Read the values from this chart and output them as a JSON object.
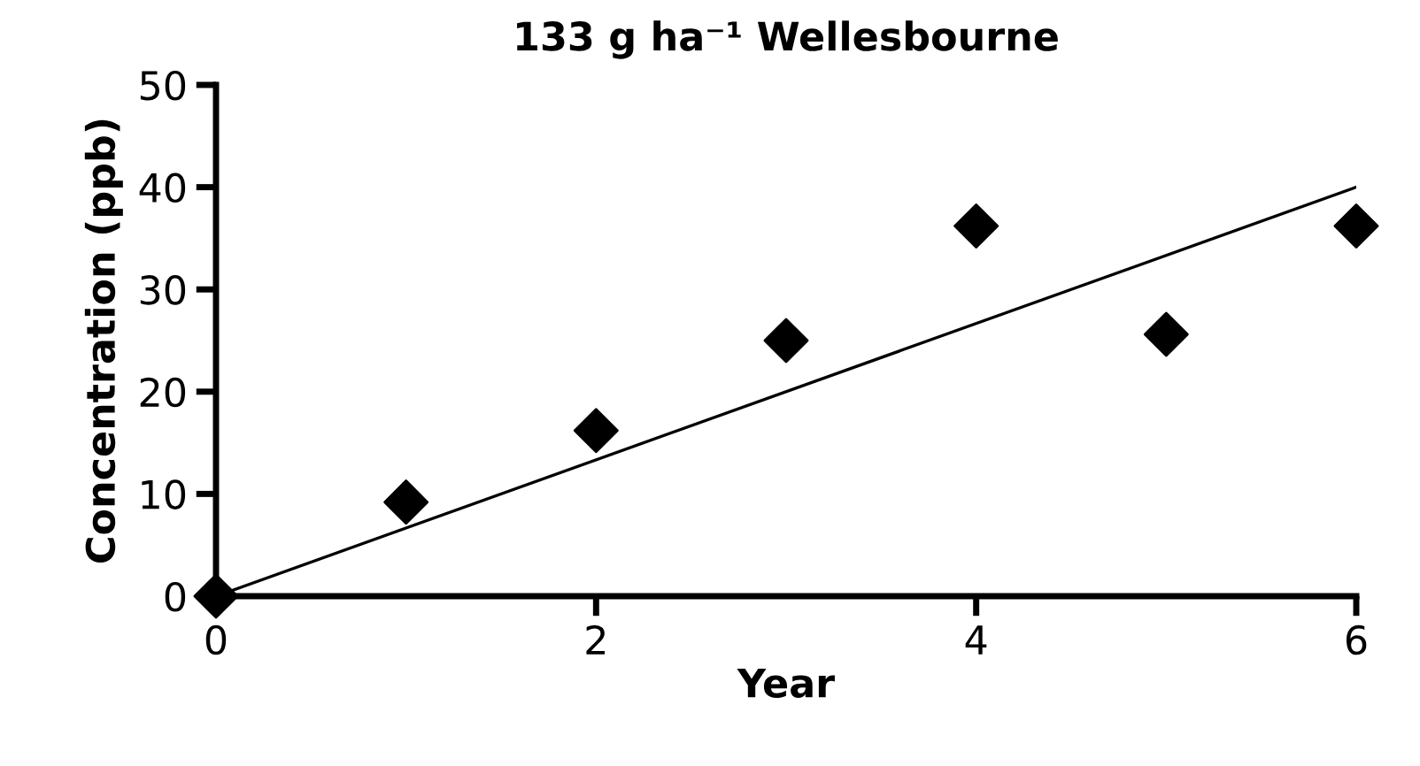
{
  "chart_data": {
    "type": "scatter",
    "title": "133 g ha⁻¹ Wellesbourne",
    "xlabel": "Year",
    "ylabel": "Concentration (ppb)",
    "x": [
      0,
      1,
      2,
      3,
      4,
      5,
      6
    ],
    "series": [
      {
        "color": "#000000",
        "marker": "diamond",
        "values": [
          0,
          9.2,
          16.2,
          25.0,
          36.2,
          25.6,
          36.2
        ]
      },
      {
        "type": "line",
        "color": "#000000",
        "marker": "none",
        "line_style": "solid",
        "x": [
          0,
          6
        ],
        "values": [
          0,
          40
        ]
      }
    ],
    "xlim": [
      0,
      6
    ],
    "ylim": [
      0,
      50
    ],
    "xticks": [
      0,
      2,
      4,
      6
    ],
    "yticks": [
      0,
      10,
      20,
      30,
      40,
      50
    ],
    "grid": false,
    "legend": false
  }
}
